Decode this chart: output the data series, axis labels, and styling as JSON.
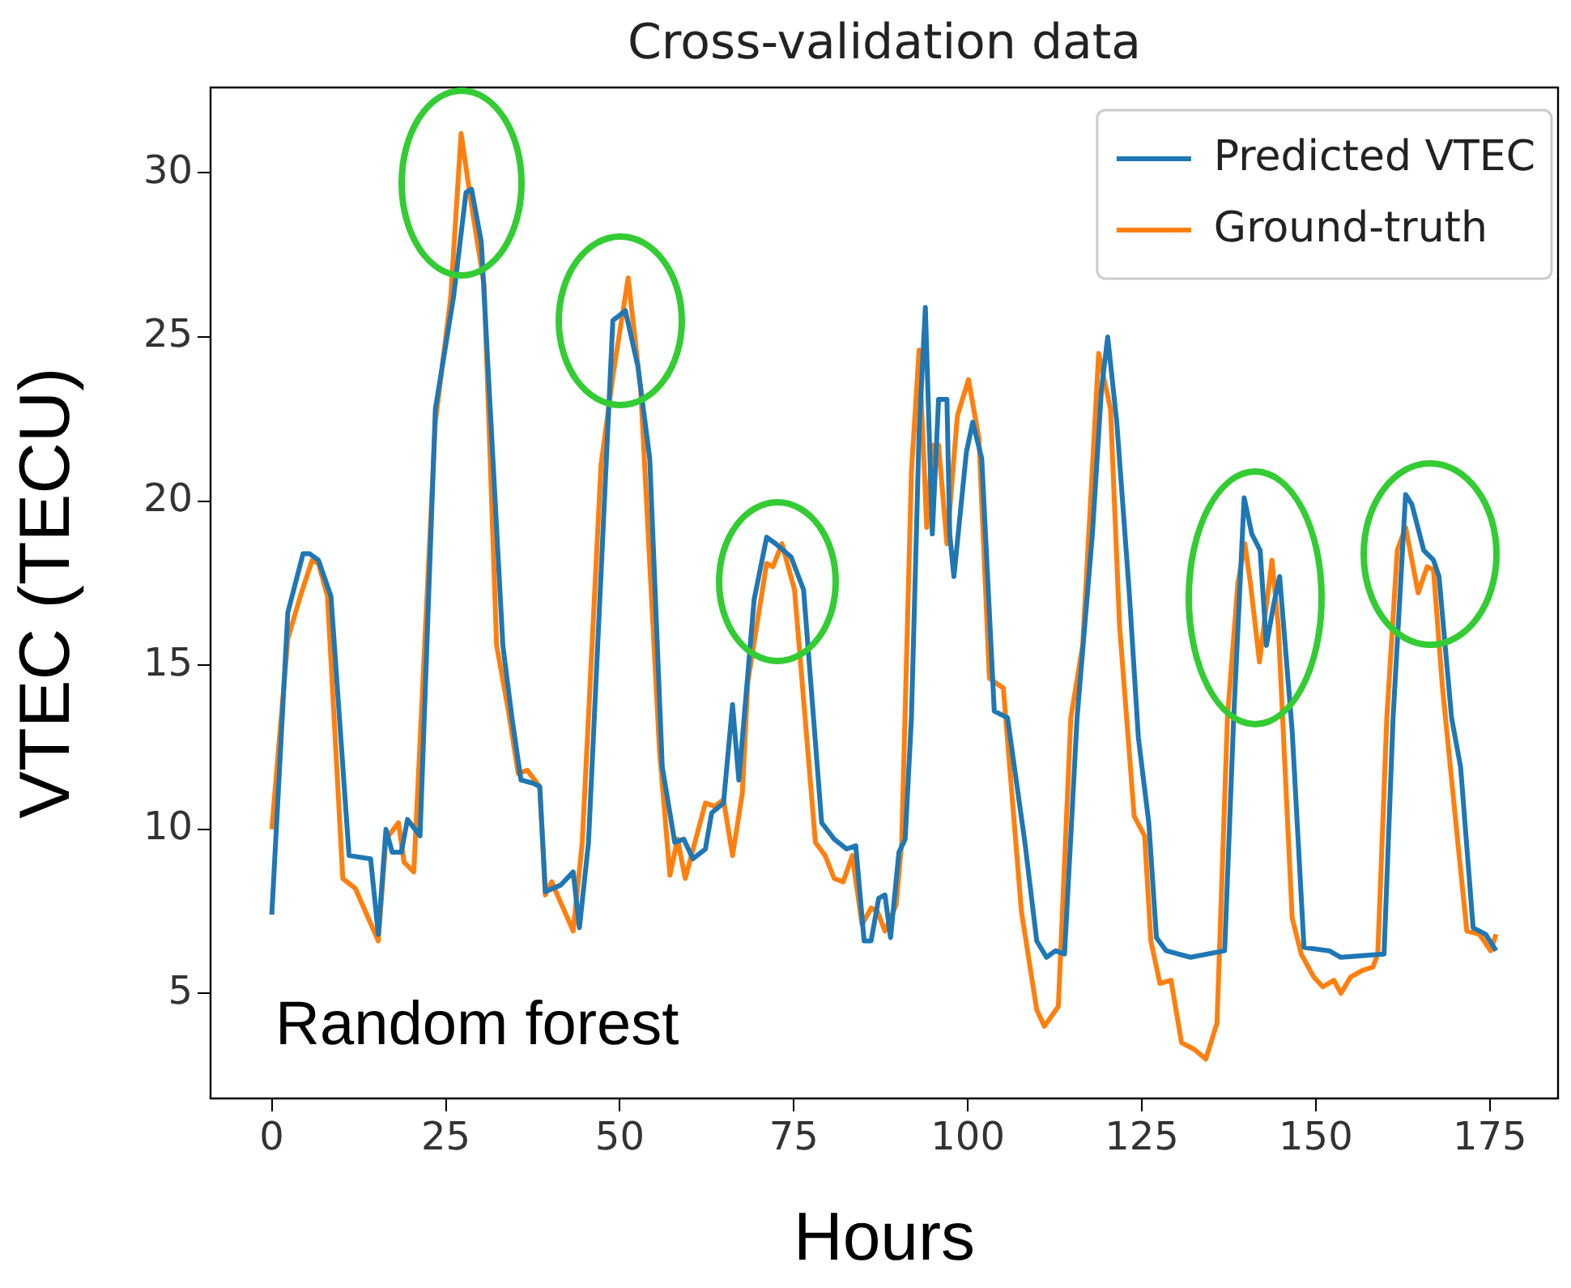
{
  "chart_data": {
    "type": "line",
    "title": "Cross-validation data",
    "xlabel": "Hours",
    "ylabel": "VTEC (TECU)",
    "annotations": [
      "Random forest"
    ],
    "xlim": [
      -8.8,
      184.8
    ],
    "xticks": [
      0,
      25,
      50,
      75,
      100,
      125,
      150,
      175
    ],
    "ylim": [
      1.8,
      32.6
    ],
    "yticks": [
      5,
      10,
      15,
      20,
      25,
      30
    ],
    "grid": false,
    "legend": "top right",
    "marker": "none",
    "line_style": "solid",
    "series": [
      {
        "name": "Predicted VTEC",
        "color": "#1f77b4",
        "x": [
          0,
          2.3,
          4.5,
          5.4,
          6.7,
          8.5,
          11.1,
          14.2,
          15.3,
          16.4,
          17.3,
          18.6,
          19.5,
          21.3,
          23.5,
          26.1,
          27.9,
          28.7,
          30.1,
          33.2,
          34.5,
          35.8,
          37.6,
          38.5,
          39.3,
          41.5,
          43.3,
          44.2,
          45.5,
          49,
          50.8,
          52.6,
          54.3,
          56.1,
          57.9,
          59.2,
          60.5,
          62.3,
          63.2,
          64.9,
          66.2,
          67.1,
          69.3,
          71.1,
          72.4,
          74.6,
          76.4,
          79,
          80.8,
          82.6,
          83.9,
          85.1,
          86.1,
          87.2,
          88.1,
          88.9,
          90.1,
          91,
          91.9,
          93,
          93.9,
          94.9,
          95.8,
          97,
          97.4,
          98,
          99.8,
          100.7,
          102,
          103.8,
          105.7,
          108.2,
          109.9,
          111.3,
          112.6,
          113.9,
          115.7,
          117.9,
          119.2,
          120.1,
          121.4,
          123.2,
          124.5,
          126,
          127.1,
          128.5,
          132,
          136.9,
          138.2,
          139.7,
          140.8,
          142,
          142.9,
          143.9,
          144.8,
          146.6,
          148.3,
          151.9,
          153.6,
          159.8,
          161.1,
          162.9,
          163.8,
          165.5,
          166.9,
          167.7,
          169.5,
          170.8,
          172.6,
          174.4,
          175.9
        ],
        "values": [
          7.4,
          16.6,
          18.4,
          18.4,
          18.2,
          17.1,
          9.2,
          9.1,
          6.8,
          10.0,
          9.3,
          9.3,
          10.3,
          9.8,
          22.8,
          26.2,
          29.4,
          29.5,
          27.9,
          15.6,
          13.4,
          11.5,
          11.4,
          11.3,
          8.1,
          8.3,
          8.7,
          7.0,
          9.6,
          25.5,
          25.8,
          24.1,
          21.3,
          11.9,
          9.6,
          9.7,
          9.1,
          9.4,
          10.5,
          10.8,
          13.8,
          11.5,
          17.0,
          18.9,
          18.7,
          18.3,
          17.3,
          10.2,
          9.7,
          9.4,
          9.5,
          6.6,
          6.6,
          7.9,
          8.0,
          6.7,
          9.3,
          9.7,
          13.4,
          22.1,
          25.9,
          19.0,
          23.1,
          23.1,
          19.0,
          17.7,
          21.5,
          22.4,
          21.3,
          13.6,
          13.4,
          9.6,
          6.6,
          6.1,
          6.3,
          6.2,
          13.4,
          19.0,
          23.4,
          25.0,
          22.4,
          17.2,
          12.8,
          10.2,
          6.7,
          6.3,
          6.1,
          6.3,
          13.4,
          20.1,
          19.0,
          18.5,
          15.6,
          16.8,
          17.7,
          13.0,
          6.4,
          6.3,
          6.1,
          6.2,
          13.4,
          20.2,
          19.9,
          18.5,
          18.2,
          17.7,
          13.4,
          11.9,
          7.0,
          6.8,
          6.3
        ]
      },
      {
        "name": "Ground-truth",
        "color": "#ff7f0e",
        "x": [
          0,
          2.3,
          4.1,
          5.8,
          6.7,
          8,
          10.2,
          12,
          15.3,
          16.4,
          18.2,
          19,
          20.4,
          23.5,
          25.7,
          27.2,
          28.7,
          30.5,
          32.3,
          34,
          35.4,
          36.7,
          38.5,
          39.3,
          40.2,
          43.3,
          44.6,
          47.3,
          49,
          51.2,
          53,
          55.7,
          57.2,
          58.3,
          59.4,
          62.3,
          63.6,
          64.9,
          66.2,
          67.6,
          68.4,
          71.1,
          72,
          73.3,
          75.1,
          78.1,
          79.5,
          80.8,
          82.1,
          83.4,
          84.8,
          86.1,
          87,
          88.1,
          89.7,
          90.5,
          91.9,
          93,
          94.1,
          94.9,
          95.8,
          97,
          98.5,
          100.1,
          101.6,
          103.1,
          105.1,
          107.7,
          109.9,
          111,
          113,
          114.8,
          116.5,
          118.8,
          120.5,
          121.8,
          123.9,
          125.4,
          126.3,
          127.6,
          129.2,
          130.7,
          132.5,
          134.2,
          135.8,
          137.3,
          138.8,
          139.8,
          140.6,
          141.9,
          143.7,
          144.6,
          146.6,
          147.9,
          149.7,
          151,
          152.6,
          153.6,
          155,
          156.7,
          158.2,
          158.9,
          160.2,
          161.7,
          162.9,
          164.7,
          166,
          166.9,
          168.2,
          170.4,
          171.7,
          173.5,
          175.1,
          175.9
        ],
        "values": [
          10.0,
          15.8,
          17.1,
          18.2,
          18.1,
          17.1,
          8.5,
          8.2,
          6.6,
          9.7,
          10.2,
          9.0,
          8.7,
          22.4,
          26.2,
          31.2,
          29.0,
          26.6,
          15.6,
          13.6,
          11.7,
          11.8,
          11.3,
          8.0,
          8.4,
          6.9,
          9.6,
          21.1,
          23.8,
          26.8,
          23.4,
          12.4,
          8.6,
          9.7,
          8.5,
          10.8,
          10.7,
          10.9,
          9.2,
          11.1,
          14.5,
          18.1,
          18.0,
          18.7,
          17.3,
          9.6,
          9.2,
          8.5,
          8.4,
          9.2,
          7.1,
          7.6,
          7.5,
          6.9,
          7.7,
          9.6,
          20.9,
          24.6,
          19.2,
          21.7,
          21.7,
          18.7,
          22.6,
          23.7,
          21.9,
          14.6,
          14.3,
          7.5,
          4.5,
          4.0,
          4.6,
          13.4,
          15.6,
          24.5,
          22.8,
          16.2,
          10.4,
          9.8,
          6.6,
          5.3,
          5.4,
          3.5,
          3.3,
          3.0,
          4.1,
          13.4,
          17.5,
          18.7,
          17.5,
          15.1,
          18.2,
          16.2,
          7.3,
          6.2,
          5.5,
          5.2,
          5.4,
          5.0,
          5.5,
          5.7,
          5.8,
          6.2,
          13.4,
          18.5,
          19.2,
          17.2,
          18.0,
          17.9,
          14.3,
          9.6,
          6.9,
          6.8,
          6.3,
          6.8
        ]
      }
    ]
  }
}
